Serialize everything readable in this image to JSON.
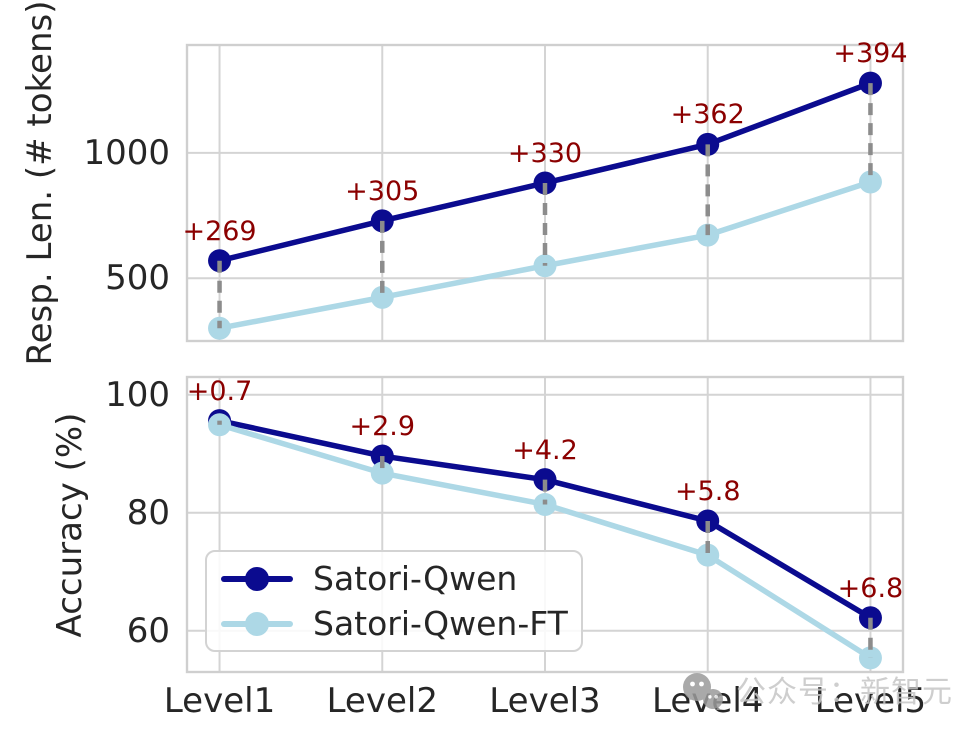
{
  "figure": {
    "background": "#ffffff",
    "text_color": "#262626",
    "grid_color": "#d4d4d4",
    "connector_color": "#8c8c8c",
    "watermark": {
      "icon": "wechat-icon",
      "text": "公众号：新智元",
      "color": "#c6c6c6"
    }
  },
  "chart_data": [
    {
      "type": "line",
      "title": "",
      "xlabel": "",
      "ylabel": "Resp. Len. (# tokens)",
      "categories": [
        "Level1",
        "Level2",
        "Level3",
        "Level4",
        "Level5"
      ],
      "yticks": [
        500,
        1000
      ],
      "ylim": [
        250,
        1430
      ],
      "grid": true,
      "series": [
        {
          "name": "Satori-Qwen",
          "color": "#0b0b8f",
          "values": [
            570,
            729,
            880,
            1034,
            1278
          ]
        },
        {
          "name": "Satori-Qwen-FT",
          "color": "#ADD8E6",
          "values": [
            301,
            424,
            550,
            672,
            884
          ]
        }
      ],
      "annotations": [
        "+269",
        "+305",
        "+330",
        "+362",
        "+394"
      ],
      "annotation_color": "#8B0000",
      "show_x_tick_labels": false,
      "legend": null
    },
    {
      "type": "line",
      "title": "",
      "xlabel": "",
      "ylabel": "Accuracy (%)",
      "categories": [
        "Level1",
        "Level2",
        "Level3",
        "Level4",
        "Level5"
      ],
      "yticks": [
        60,
        80,
        100
      ],
      "ylim": [
        53,
        103
      ],
      "grid": true,
      "series": [
        {
          "name": "Satori-Qwen",
          "color": "#0b0b8f",
          "values": [
            95.6,
            89.6,
            85.6,
            78.6,
            62.2
          ]
        },
        {
          "name": "Satori-Qwen-FT",
          "color": "#ADD8E6",
          "values": [
            94.9,
            86.7,
            81.4,
            72.8,
            55.4
          ]
        }
      ],
      "annotations": [
        "+0.7",
        "+2.9",
        "+4.2",
        "+5.8",
        "+6.8"
      ],
      "annotation_color": "#8B0000",
      "show_x_tick_labels": true,
      "legend": {
        "position": "lower-left",
        "entries": [
          "Satori-Qwen",
          "Satori-Qwen-FT"
        ]
      }
    }
  ]
}
